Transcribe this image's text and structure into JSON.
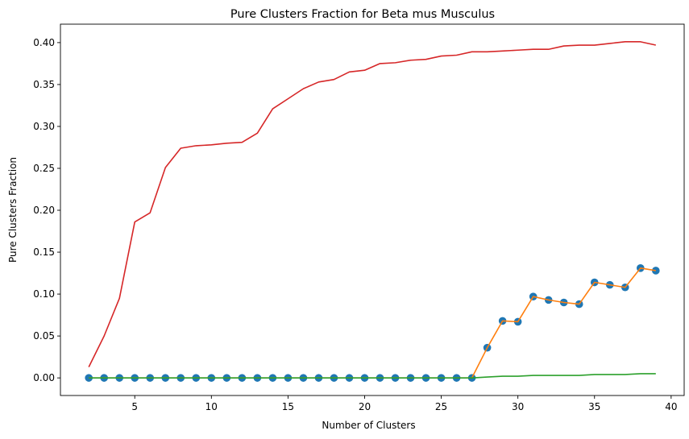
{
  "chart_data": {
    "type": "line",
    "title": "Pure Clusters Fraction for Beta mus Musculus",
    "xlabel": "Number of Clusters",
    "ylabel": "Pure Clusters Fraction",
    "xlim": [
      0.15,
      40.85
    ],
    "ylim": [
      -0.021,
      0.422
    ],
    "xticks": [
      5,
      10,
      15,
      20,
      25,
      30,
      35,
      40
    ],
    "yticks": [
      0.0,
      0.05,
      0.1,
      0.15,
      0.2,
      0.25,
      0.3,
      0.35,
      0.4
    ],
    "grid": false,
    "x": [
      2,
      3,
      4,
      5,
      6,
      7,
      8,
      9,
      10,
      11,
      12,
      13,
      14,
      15,
      16,
      17,
      18,
      19,
      20,
      21,
      22,
      23,
      24,
      25,
      26,
      27,
      28,
      29,
      30,
      31,
      32,
      33,
      34,
      35,
      36,
      37,
      38,
      39
    ],
    "series": [
      {
        "style": "scatter",
        "color": "#1f77b4",
        "values": [
          0,
          0,
          0,
          0,
          0,
          0,
          0,
          0,
          0,
          0,
          0,
          0,
          0,
          0,
          0,
          0,
          0,
          0,
          0,
          0,
          0,
          0,
          0,
          0,
          0,
          0,
          0.036,
          0.068,
          0.067,
          0.097,
          0.093,
          0.09,
          0.088,
          0.114,
          0.111,
          0.108,
          0.131,
          0.128
        ]
      },
      {
        "style": "line",
        "color": "#ff7f0e",
        "values": [
          0,
          0,
          0,
          0,
          0,
          0,
          0,
          0,
          0,
          0,
          0,
          0,
          0,
          0,
          0,
          0,
          0,
          0,
          0,
          0,
          0,
          0,
          0,
          0,
          0,
          0,
          0.036,
          0.068,
          0.067,
          0.097,
          0.093,
          0.09,
          0.088,
          0.114,
          0.111,
          0.108,
          0.131,
          0.128
        ]
      },
      {
        "style": "line",
        "color": "#2ca02c",
        "values": [
          0,
          0,
          0,
          0,
          0,
          0,
          0,
          0,
          0,
          0,
          0,
          0,
          0,
          0,
          0,
          0,
          0,
          0,
          0,
          0,
          0,
          0,
          0,
          0,
          0,
          0,
          0.001,
          0.002,
          0.002,
          0.003,
          0.003,
          0.003,
          0.003,
          0.004,
          0.004,
          0.004,
          0.005,
          0.005
        ]
      },
      {
        "style": "line",
        "color": "#d62728",
        "values": [
          0.013,
          0.05,
          0.095,
          0.186,
          0.197,
          0.251,
          0.274,
          0.277,
          0.278,
          0.28,
          0.281,
          0.292,
          0.321,
          0.333,
          0.345,
          0.353,
          0.356,
          0.365,
          0.367,
          0.375,
          0.376,
          0.379,
          0.38,
          0.384,
          0.385,
          0.389,
          0.389,
          0.39,
          0.391,
          0.392,
          0.392,
          0.396,
          0.397,
          0.397,
          0.399,
          0.401,
          0.401,
          0.397
        ]
      }
    ]
  }
}
